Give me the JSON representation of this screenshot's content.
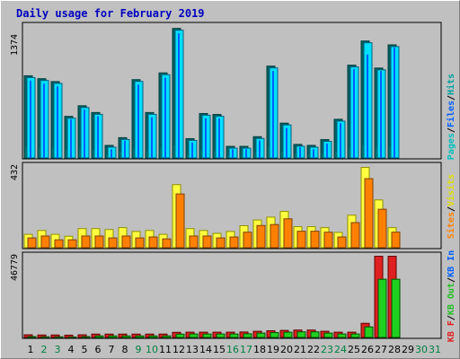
{
  "title": "Daily usage for February 2019",
  "colors": {
    "hits": "#00e0ff",
    "hits_dark": "#009090",
    "files": "#0060ff",
    "pages": "#00c0c0",
    "pages_dark": "#006060",
    "visits": "#ffff40",
    "visits_dark": "#909000",
    "sites": "#ff8000",
    "kbin": "#20d020",
    "kbin_dark": "#007000",
    "kbout": "#e02020",
    "weekend_label": "#008040",
    "weekday_label": "#000000"
  },
  "chart_data": [
    {
      "type": "bar",
      "panel": "hits-files-pages",
      "y_max_label": "1374",
      "ylim": [
        0,
        1374
      ],
      "x": [
        1,
        2,
        3,
        4,
        5,
        6,
        7,
        8,
        9,
        10,
        11,
        12,
        13,
        14,
        15,
        16,
        17,
        18,
        19,
        20,
        21,
        22,
        23,
        24,
        25,
        26,
        27,
        28
      ],
      "series": [
        {
          "name": "Hits",
          "values": [
            850,
            820,
            790,
            430,
            540,
            470,
            130,
            210,
            810,
            470,
            880,
            1340,
            200,
            460,
            450,
            120,
            120,
            220,
            950,
            360,
            140,
            130,
            190,
            400,
            960,
            1210,
            930,
            1170
          ]
        },
        {
          "name": "Files",
          "values": [
            800,
            770,
            740,
            400,
            500,
            430,
            90,
            180,
            760,
            420,
            830,
            1290,
            160,
            410,
            410,
            90,
            90,
            180,
            900,
            310,
            110,
            90,
            150,
            360,
            920,
            1070,
            900,
            1140
          ]
        },
        {
          "name": "Pages",
          "values": [
            120,
            100,
            110,
            80,
            100,
            80,
            40,
            60,
            100,
            70,
            110,
            130,
            40,
            80,
            70,
            30,
            30,
            50,
            120,
            60,
            40,
            40,
            50,
            70,
            110,
            130,
            110,
            120
          ]
        }
      ],
      "legend": [
        "Pages",
        "Files",
        "Hits"
      ]
    },
    {
      "type": "bar",
      "panel": "visits-sites",
      "y_max_label": "432",
      "ylim": [
        0,
        432
      ],
      "x": [
        1,
        2,
        3,
        4,
        5,
        6,
        7,
        8,
        9,
        10,
        11,
        12,
        13,
        14,
        15,
        16,
        17,
        18,
        19,
        20,
        21,
        22,
        23,
        24,
        25,
        26,
        27,
        28
      ],
      "series": [
        {
          "name": "Visits",
          "values": [
            70,
            90,
            70,
            60,
            100,
            100,
            95,
            105,
            85,
            90,
            70,
            330,
            100,
            90,
            75,
            85,
            115,
            145,
            160,
            190,
            110,
            110,
            105,
            80,
            170,
            420,
            250,
            105
          ]
        },
        {
          "name": "Sites",
          "values": [
            70,
            80,
            60,
            60,
            80,
            80,
            70,
            80,
            70,
            75,
            65,
            300,
            80,
            80,
            70,
            75,
            100,
            135,
            140,
            170,
            105,
            105,
            100,
            75,
            150,
            380,
            220,
            100
          ]
        }
      ],
      "legend": [
        "Sites",
        "Visits"
      ]
    },
    {
      "type": "bar",
      "panel": "kbytes",
      "y_max_label": "46779",
      "ylim": [
        0,
        46779
      ],
      "x": [
        1,
        2,
        3,
        4,
        5,
        6,
        7,
        8,
        9,
        10,
        11,
        12,
        13,
        14,
        15,
        16,
        17,
        18,
        19,
        20,
        21,
        22,
        23,
        24,
        25,
        26,
        27,
        28
      ],
      "series": [
        {
          "name": "KB F",
          "values": [
            1500,
            1400,
            1400,
            1300,
            1500,
            1900,
            1900,
            1900,
            1900,
            1900,
            1900,
            2900,
            3000,
            3000,
            3000,
            3000,
            3100,
            3500,
            3800,
            4000,
            4200,
            4200,
            3500,
            3000,
            3000,
            8000,
            46000,
            46000
          ]
        },
        {
          "name": "KB In",
          "values": [
            1500,
            1400,
            1400,
            1300,
            1500,
            1900,
            1900,
            1900,
            1900,
            1900,
            1900,
            2900,
            3000,
            3000,
            3000,
            3000,
            3100,
            3500,
            3800,
            4000,
            4200,
            4200,
            3500,
            3000,
            3000,
            7000,
            34000,
            34000
          ]
        },
        {
          "name": "KB Out",
          "values": [
            0,
            0,
            0,
            0,
            0,
            0,
            0,
            0,
            0,
            0,
            0,
            0,
            0,
            0,
            0,
            0,
            0,
            0,
            0,
            0,
            0,
            0,
            0,
            0,
            0,
            0,
            0,
            0
          ]
        }
      ],
      "legend": [
        "KB F",
        "KB In",
        "KB Out"
      ]
    }
  ],
  "x_labels": [
    "1",
    "2",
    "3",
    "4",
    "5",
    "6",
    "7",
    "8",
    "9",
    "10",
    "11",
    "12",
    "13",
    "14",
    "15",
    "16",
    "17",
    "18",
    "19",
    "20",
    "21",
    "22",
    "23",
    "24",
    "25",
    "26",
    "27",
    "28",
    "29",
    "30",
    "31"
  ],
  "weekend_days": [
    2,
    3,
    9,
    10,
    16,
    17,
    23,
    24,
    30,
    31
  ],
  "right_legend_1": [
    "Pages",
    "/",
    "Files",
    "/",
    "Hits"
  ],
  "right_legend_2": [
    "Sites",
    "/",
    "Visits"
  ],
  "right_legend_3": [
    "KB F",
    "/",
    "KB Out",
    "/",
    "KB In"
  ]
}
